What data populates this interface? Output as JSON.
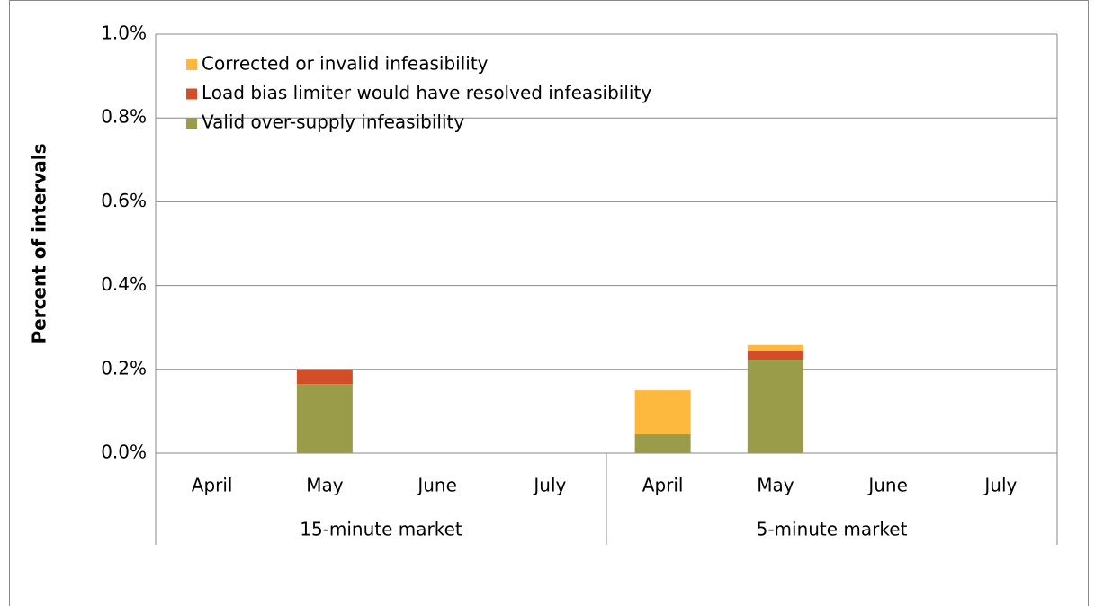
{
  "chart_data": {
    "type": "stacked_bar",
    "y_label": "Percent of intervals",
    "categories": [
      "April",
      "May",
      "June",
      "July",
      "April",
      "May",
      "June",
      "July"
    ],
    "groups": [
      "15-minute market",
      "5-minute market"
    ],
    "series": [
      {
        "name": "Corrected or invalid infeasibility",
        "color": "#FDB93D",
        "values": [
          0,
          0,
          0,
          0,
          0.105,
          0.013,
          0,
          0
        ]
      },
      {
        "name": "Load bias limiter would have resolved infeasibility",
        "color": "#D24E29",
        "values": [
          0,
          0.035,
          0,
          0,
          0,
          0.022,
          0,
          0
        ]
      },
      {
        "name": "Valid over-supply infeasibility",
        "color": "#9A9C4A",
        "values": [
          0,
          0.165,
          0,
          0,
          0.045,
          0.223,
          0,
          0
        ]
      }
    ],
    "ylim": [
      0,
      1.0
    ],
    "yticks": [
      {
        "value": 0,
        "label": "0.0%"
      },
      {
        "value": 0.2,
        "label": "0.2%"
      },
      {
        "value": 0.4,
        "label": "0.4%"
      },
      {
        "value": 0.6,
        "label": "0.6%"
      },
      {
        "value": 0.8,
        "label": "0.8%"
      },
      {
        "value": 1.0,
        "label": "1.0%"
      }
    ],
    "grid": true,
    "legend": "top-left"
  }
}
